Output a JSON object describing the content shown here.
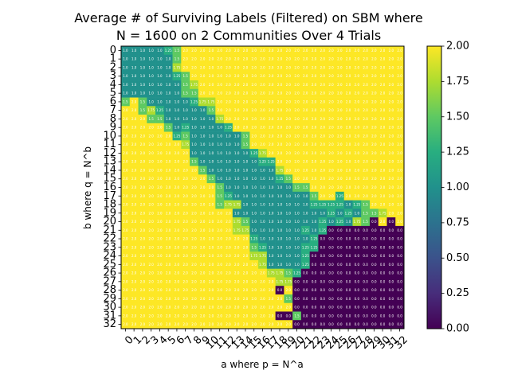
{
  "chart_data": {
    "type": "heatmap",
    "title_line1": "Average # of Surviving Labels (Filtered) on SBM where",
    "title_line2": "N = 1600 on 2 Communities Over 4 Trials",
    "xlabel": "a where p = N^a",
    "ylabel": "b where q = N^b",
    "x_categories": [
      "0",
      "1",
      "2",
      "3",
      "4",
      "5",
      "6",
      "7",
      "8",
      "9",
      "10",
      "11",
      "12",
      "13",
      "14",
      "15",
      "16",
      "17",
      "18",
      "19",
      "20",
      "21",
      "22",
      "23",
      "24",
      "25",
      "26",
      "27",
      "28",
      "29",
      "30",
      "31",
      "32"
    ],
    "y_categories": [
      "0",
      "1",
      "2",
      "3",
      "4",
      "5",
      "6",
      "7",
      "8",
      "9",
      "10",
      "11",
      "12",
      "13",
      "14",
      "15",
      "16",
      "17",
      "18",
      "19",
      "20",
      "21",
      "22",
      "23",
      "24",
      "25",
      "26",
      "27",
      "28",
      "29",
      "30",
      "31",
      "32"
    ],
    "colorbar": {
      "min": 0.0,
      "max": 2.0,
      "colormap": "viridis",
      "ticks": [
        "0.00",
        "0.25",
        "0.50",
        "0.75",
        "1.00",
        "1.25",
        "1.50",
        "1.75",
        "2.00"
      ]
    },
    "value_format": "one decimal; 1.25/1.75 shown with two decimals",
    "matrix": [
      [
        1,
        1,
        1,
        1,
        1,
        1.25,
        1.5,
        2,
        2,
        2,
        2,
        2,
        2,
        2,
        2,
        2,
        2,
        2,
        2,
        2,
        2,
        2,
        2,
        2,
        2,
        2,
        2,
        2,
        2,
        2,
        2,
        2,
        2
      ],
      [
        1,
        1,
        1,
        1,
        1,
        1,
        1.5,
        2,
        2,
        2,
        2,
        2,
        2,
        2,
        2,
        2,
        2,
        2,
        2,
        2,
        2,
        2,
        2,
        2,
        2,
        2,
        2,
        2,
        2,
        2,
        2,
        2,
        2
      ],
      [
        1,
        1,
        1,
        1,
        1,
        1,
        1.75,
        2,
        2,
        2,
        2,
        2,
        2,
        2,
        2,
        2,
        2,
        2,
        2,
        2,
        2,
        2,
        2,
        2,
        2,
        2,
        2,
        2,
        2,
        2,
        2,
        2,
        2
      ],
      [
        1,
        1,
        1,
        1,
        1,
        1,
        1.25,
        1.5,
        2,
        2,
        2,
        2,
        2,
        2,
        2,
        2,
        2,
        2,
        2,
        2,
        2,
        2,
        2,
        2,
        2,
        2,
        2,
        2,
        2,
        2,
        2,
        2,
        2
      ],
      [
        1,
        1,
        1,
        1,
        1,
        1,
        1,
        1.5,
        1.75,
        2,
        2,
        2,
        2,
        2,
        2,
        2,
        2,
        2,
        2,
        2,
        2,
        2,
        2,
        2,
        2,
        2,
        2,
        2,
        2,
        2,
        2,
        2,
        2
      ],
      [
        1,
        1,
        1,
        1,
        1,
        1,
        1,
        1.5,
        1.5,
        2,
        2,
        2,
        2,
        2,
        2,
        2,
        2,
        2,
        2,
        2,
        2,
        2,
        2,
        2,
        2,
        2,
        2,
        2,
        2,
        2,
        2,
        2,
        2
      ],
      [
        1.5,
        2,
        1.5,
        1,
        1,
        1,
        1,
        1,
        1.25,
        1.75,
        1.75,
        2,
        2,
        2,
        2,
        2,
        2,
        2,
        2,
        2,
        2,
        2,
        2,
        2,
        2,
        2,
        2,
        2,
        2,
        2,
        2,
        2,
        2
      ],
      [
        2,
        2,
        1.5,
        1.75,
        1.25,
        1,
        1,
        1,
        1,
        1,
        1.5,
        2,
        2,
        2,
        2,
        2,
        2,
        2,
        2,
        2,
        2,
        2,
        2,
        2,
        2,
        2,
        2,
        2,
        2,
        2,
        2,
        2,
        2
      ],
      [
        2,
        2,
        2,
        1.5,
        1.5,
        1,
        1,
        1,
        1,
        1,
        1,
        1.75,
        2,
        2,
        2,
        2,
        2,
        2,
        2,
        2,
        2,
        2,
        2,
        2,
        2,
        2,
        2,
        2,
        2,
        2,
        2,
        2,
        2
      ],
      [
        2,
        2,
        2,
        2,
        2,
        1.5,
        1,
        1.25,
        1,
        1,
        1,
        1,
        1.25,
        2,
        2,
        2,
        2,
        2,
        2,
        2,
        2,
        2,
        2,
        2,
        2,
        2,
        2,
        2,
        2,
        2,
        2,
        2,
        2
      ],
      [
        2,
        2,
        2,
        2,
        2,
        2,
        1.25,
        1.5,
        1,
        1,
        1,
        1,
        1,
        1,
        1.5,
        2,
        2,
        2,
        2,
        2,
        2,
        2,
        2,
        2,
        2,
        2,
        2,
        2,
        2,
        2,
        2,
        2,
        2
      ],
      [
        2,
        2,
        2,
        2,
        2,
        2,
        2,
        1.75,
        1,
        1,
        1,
        1,
        1,
        1,
        1.5,
        2,
        2,
        2,
        2,
        2,
        2,
        2,
        2,
        2,
        2,
        2,
        2,
        2,
        2,
        2,
        2,
        2,
        2
      ],
      [
        2,
        2,
        2,
        2,
        2,
        2,
        2,
        2,
        1,
        1,
        1,
        1,
        1,
        1,
        1,
        1.25,
        1.75,
        2,
        2,
        2,
        2,
        2,
        2,
        2,
        2,
        2,
        2,
        2,
        2,
        2,
        2,
        2,
        2
      ],
      [
        2,
        2,
        2,
        2,
        2,
        2,
        2,
        2,
        1.5,
        1,
        1,
        1,
        1,
        1,
        1,
        1,
        1.25,
        1.25,
        2,
        2,
        2,
        2,
        2,
        2,
        2,
        2,
        2,
        2,
        2,
        2,
        2,
        2,
        2
      ],
      [
        2,
        2,
        2,
        2,
        2,
        2,
        2,
        2,
        2,
        1.5,
        1,
        1,
        1,
        1,
        1,
        1,
        1,
        1,
        1.75,
        2,
        2,
        2,
        2,
        2,
        2,
        2,
        2,
        2,
        2,
        2,
        2,
        2,
        2
      ],
      [
        2,
        2,
        2,
        2,
        2,
        2,
        2,
        2,
        2,
        2,
        1.5,
        1,
        1,
        1,
        1,
        1,
        1,
        1,
        1.25,
        1.5,
        2,
        2,
        2,
        2,
        2,
        2,
        2,
        2,
        2,
        2,
        2,
        2,
        2
      ],
      [
        2,
        2,
        2,
        2,
        2,
        2,
        2,
        2,
        2,
        2,
        2,
        1.5,
        1,
        1,
        1,
        1,
        1,
        1,
        1,
        1,
        1.5,
        1.5,
        2,
        2,
        2,
        2,
        2,
        2,
        2,
        2,
        2,
        2,
        2
      ],
      [
        2,
        2,
        2,
        2,
        2,
        2,
        2,
        2,
        2,
        2,
        2,
        1.5,
        1.25,
        1,
        1,
        1,
        1,
        1,
        1,
        1,
        1,
        1,
        1.5,
        2,
        2,
        1.25,
        2,
        2,
        2,
        2,
        2,
        2,
        2
      ],
      [
        2,
        2,
        2,
        2,
        2,
        2,
        2,
        2,
        2,
        2,
        2,
        1.5,
        1.75,
        1.75,
        1,
        1,
        1,
        1,
        1,
        1,
        1,
        1,
        1.25,
        1.25,
        1.25,
        1.25,
        1,
        1.25,
        1.5,
        2,
        2,
        2,
        2
      ],
      [
        2,
        2,
        2,
        2,
        2,
        2,
        2,
        2,
        2,
        2,
        2,
        2,
        2,
        1,
        1,
        1,
        1,
        1,
        1,
        1,
        1,
        1,
        1,
        1,
        1.25,
        1,
        1.25,
        1,
        1.5,
        1.5,
        1.75,
        2,
        2
      ],
      [
        2,
        2,
        2,
        2,
        2,
        2,
        2,
        2,
        2,
        2,
        2,
        2,
        2,
        1.75,
        1.5,
        1,
        1,
        1,
        1,
        1,
        1,
        1,
        1,
        1.25,
        1,
        1.25,
        1,
        1.75,
        1.5,
        0,
        2,
        0,
        2
      ],
      [
        2,
        2,
        2,
        2,
        2,
        2,
        2,
        2,
        2,
        2,
        2,
        2,
        2,
        1.75,
        1.75,
        1,
        1,
        1,
        1,
        1,
        1,
        1.25,
        1,
        1.25,
        0,
        0,
        0,
        0,
        0,
        0,
        0,
        0,
        0
      ],
      [
        2,
        2,
        2,
        2,
        2,
        2,
        2,
        2,
        2,
        2,
        2,
        2,
        2,
        2,
        2,
        1.25,
        1,
        1,
        1,
        1,
        1,
        1,
        1.25,
        0,
        0,
        0,
        0,
        0,
        0,
        0,
        0,
        0,
        0
      ],
      [
        2,
        2,
        2,
        2,
        2,
        2,
        2,
        2,
        2,
        2,
        2,
        2,
        2,
        2,
        2,
        1.5,
        1.25,
        1,
        1,
        1,
        1,
        1.25,
        1.25,
        0,
        0,
        0,
        0,
        0,
        0,
        0,
        0,
        0,
        0
      ],
      [
        2,
        2,
        2,
        2,
        2,
        2,
        2,
        2,
        2,
        2,
        2,
        2,
        2,
        2,
        2,
        1.75,
        1.75,
        1,
        1,
        1,
        1,
        1.25,
        0,
        0,
        0,
        0,
        0,
        0,
        0,
        0,
        0,
        0,
        0
      ],
      [
        2,
        2,
        2,
        2,
        2,
        2,
        2,
        2,
        2,
        2,
        2,
        2,
        2,
        2,
        2,
        2,
        1.75,
        1,
        1,
        1,
        1,
        1.25,
        0,
        0,
        0,
        0,
        0,
        0,
        0,
        0,
        0,
        0,
        0
      ],
      [
        2,
        2,
        2,
        2,
        2,
        2,
        2,
        2,
        2,
        2,
        2,
        2,
        2,
        2,
        2,
        2,
        2,
        1.75,
        1.75,
        1.5,
        1.25,
        0,
        0,
        0,
        0,
        0,
        0,
        0,
        0,
        0,
        0,
        0,
        0
      ],
      [
        2,
        2,
        2,
        2,
        2,
        2,
        2,
        2,
        2,
        2,
        2,
        2,
        2,
        2,
        2,
        2,
        2,
        2,
        1.75,
        1.75,
        0,
        0,
        0,
        0,
        0,
        0,
        0,
        0,
        0,
        0,
        0,
        0,
        0
      ],
      [
        2,
        2,
        2,
        2,
        2,
        2,
        2,
        2,
        2,
        2,
        2,
        2,
        2,
        2,
        2,
        2,
        2,
        2,
        0,
        2,
        0,
        0,
        0,
        0,
        0,
        0,
        0,
        0,
        0,
        0,
        0,
        0,
        0
      ],
      [
        2,
        2,
        2,
        2,
        2,
        2,
        2,
        2,
        2,
        2,
        2,
        2,
        2,
        2,
        2,
        2,
        2,
        2,
        2,
        1.5,
        0,
        0,
        0,
        0,
        0,
        0,
        0,
        0,
        0,
        0,
        0,
        0,
        0
      ],
      [
        2,
        2,
        2,
        2,
        2,
        2,
        2,
        2,
        2,
        2,
        2,
        2,
        2,
        2,
        2,
        2,
        2,
        2,
        2,
        2,
        0,
        0,
        0,
        0,
        0,
        0,
        0,
        0,
        0,
        0,
        0,
        0,
        0
      ],
      [
        2,
        2,
        2,
        2,
        2,
        2,
        2,
        2,
        2,
        2,
        2,
        2,
        2,
        2,
        2,
        2,
        2,
        2,
        0,
        0,
        1.5,
        0,
        0,
        0,
        0,
        0,
        0,
        0,
        0,
        0,
        0,
        0,
        0
      ],
      [
        2,
        2,
        2,
        2,
        2,
        2,
        2,
        2,
        2,
        2,
        2,
        2,
        2,
        2,
        2,
        2,
        2,
        2,
        2,
        2,
        0,
        0,
        0,
        0,
        0,
        0,
        0,
        0,
        0,
        0,
        0,
        0,
        0
      ]
    ]
  }
}
